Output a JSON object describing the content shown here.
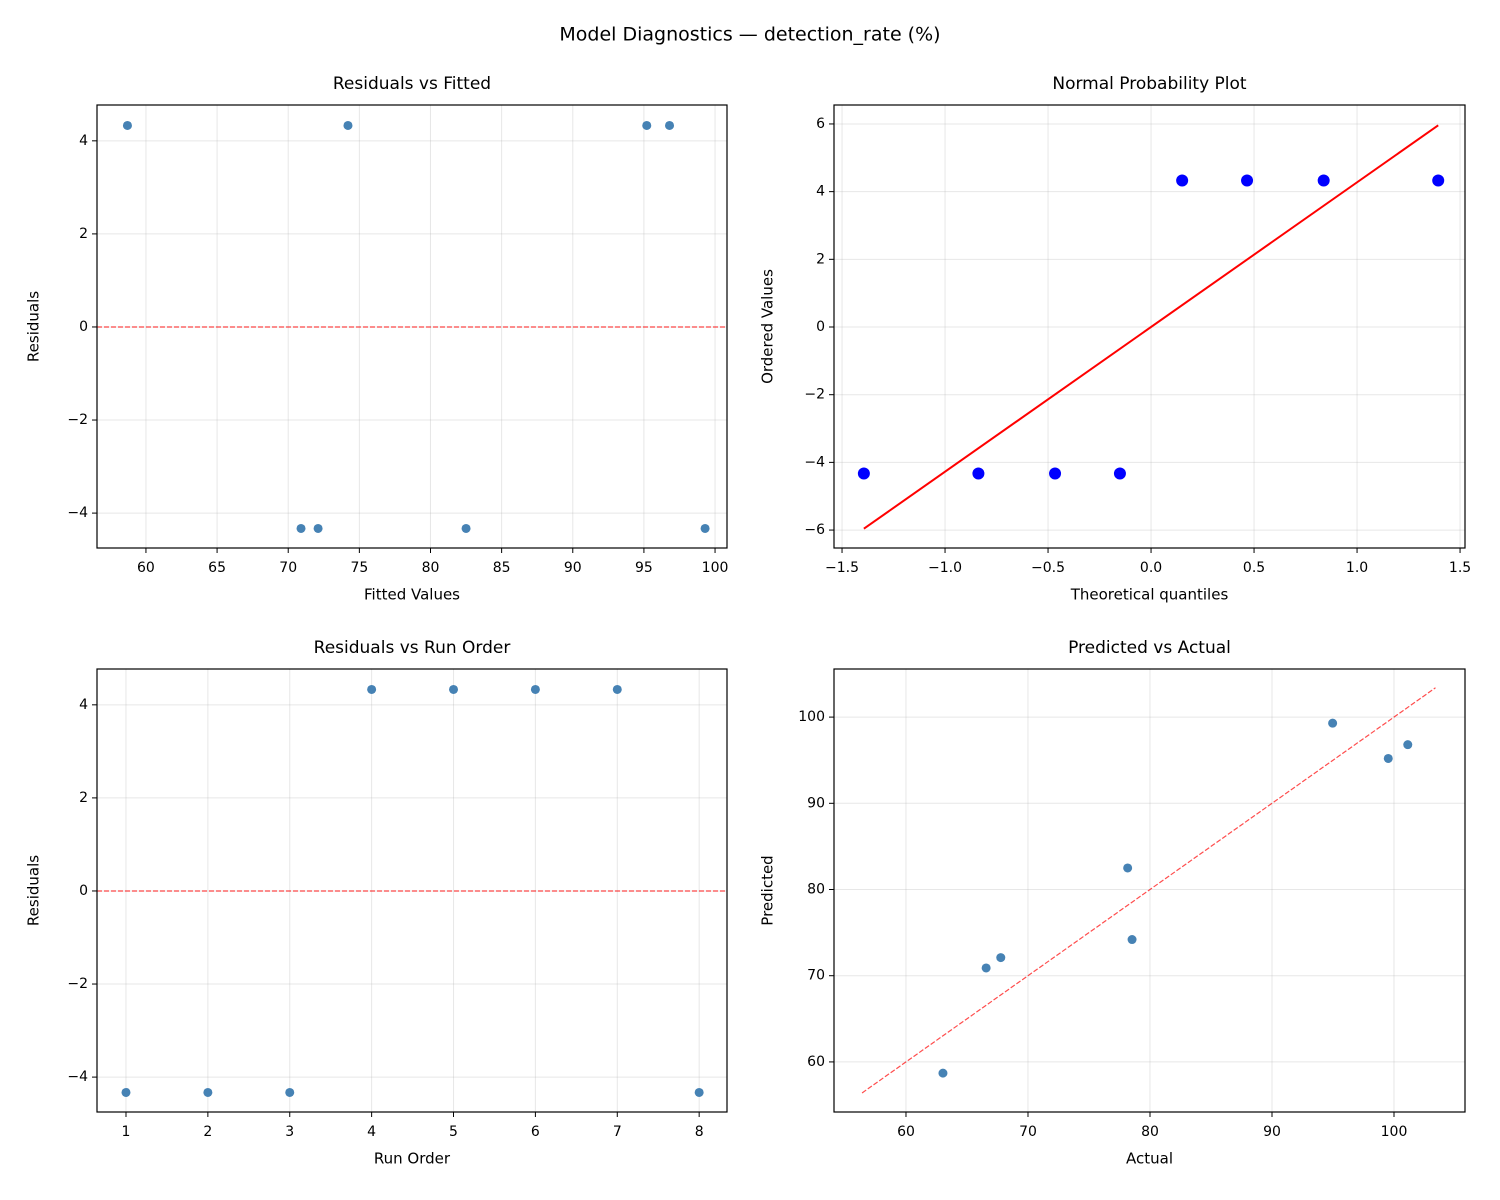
{
  "title": "Model Diagnostics — detection_rate (%)",
  "chart_data": [
    {
      "type": "scatter",
      "title": "Residuals vs Fitted",
      "xlabel": "Fitted Values",
      "ylabel": "Residuals",
      "x": [
        58.7,
        70.9,
        72.1,
        74.2,
        82.5,
        95.2,
        96.8,
        99.3
      ],
      "y": [
        4.33,
        -4.33,
        -4.33,
        4.33,
        -4.33,
        4.33,
        4.33,
        -4.33
      ],
      "color": "#4682b4",
      "xlim": [
        56.56,
        100.84
      ],
      "xticks": [
        60,
        65,
        70,
        75,
        80,
        85,
        90,
        95,
        100
      ],
      "ylim": [
        -4.75,
        4.77
      ],
      "yticks": [
        {
          "value": -4,
          "label": "−4"
        },
        {
          "value": -2,
          "label": "−2"
        },
        0,
        2,
        4
      ],
      "hline": 0,
      "ref_color": "red",
      "grid": true
    },
    {
      "type": "scatter",
      "title": "Normal Probability Plot",
      "xlabel": "Theoretical quantiles",
      "ylabel": "Ordered Values",
      "x": [
        -1.394,
        -0.838,
        -0.466,
        -0.151,
        0.151,
        0.466,
        0.838,
        1.394
      ],
      "y": [
        -4.33,
        -4.33,
        -4.33,
        -4.33,
        4.33,
        4.33,
        4.33,
        4.33
      ],
      "color": "blue",
      "fit_line": {
        "x": [
          -1.394,
          1.394
        ],
        "y": [
          -5.96,
          5.96
        ],
        "color": "red"
      },
      "xlim": [
        -1.539,
        1.524
      ],
      "xticks": [
        {
          "value": -1.5,
          "label": "−1.5"
        },
        {
          "value": -1,
          "label": "−1.0"
        },
        {
          "value": -0.5,
          "label": "−0.5"
        },
        {
          "value": 0,
          "label": "0.0"
        },
        0.5,
        {
          "value": 1,
          "label": "1.0"
        },
        1.5
      ],
      "ylim": [
        -6.53,
        6.56
      ],
      "yticks": [
        {
          "value": -6,
          "label": "−6"
        },
        {
          "value": -4,
          "label": "−4"
        },
        {
          "value": -2,
          "label": "−2"
        },
        0,
        2,
        4,
        6
      ],
      "grid": true
    },
    {
      "type": "scatter",
      "title": "Residuals vs Run Order",
      "xlabel": "Run Order",
      "ylabel": "Residuals",
      "x": [
        1,
        2,
        3,
        4,
        5,
        6,
        7,
        8
      ],
      "y": [
        -4.33,
        -4.33,
        -4.33,
        4.33,
        4.33,
        4.33,
        4.33,
        -4.33
      ],
      "color": "#4682b4",
      "xlim": [
        0.646,
        8.34
      ],
      "xticks": [
        1,
        2,
        3,
        4,
        5,
        6,
        7,
        8
      ],
      "ylim": [
        -4.75,
        4.77
      ],
      "yticks": [
        {
          "value": -4,
          "label": "−4"
        },
        {
          "value": -2,
          "label": "−2"
        },
        0,
        2,
        4
      ],
      "hline": 0,
      "ref_color": "red",
      "grid": true
    },
    {
      "type": "scatter",
      "title": "Predicted vs Actual",
      "xlabel": "Actual",
      "ylabel": "Predicted",
      "x": [
        63.03,
        66.57,
        67.77,
        78.53,
        78.17,
        99.53,
        101.13,
        94.97
      ],
      "y": [
        58.7,
        70.9,
        72.1,
        74.2,
        82.5,
        95.2,
        96.8,
        99.3
      ],
      "color": "#4682b4",
      "diag": [
        56.4,
        103.4
      ],
      "ref_color": "red",
      "xlim": [
        54.1,
        105.82
      ],
      "xticks": [
        60,
        70,
        80,
        90,
        100
      ],
      "ylim": [
        54.19,
        105.58
      ],
      "yticks": [
        60,
        70,
        80,
        90,
        100
      ],
      "grid": true
    }
  ]
}
